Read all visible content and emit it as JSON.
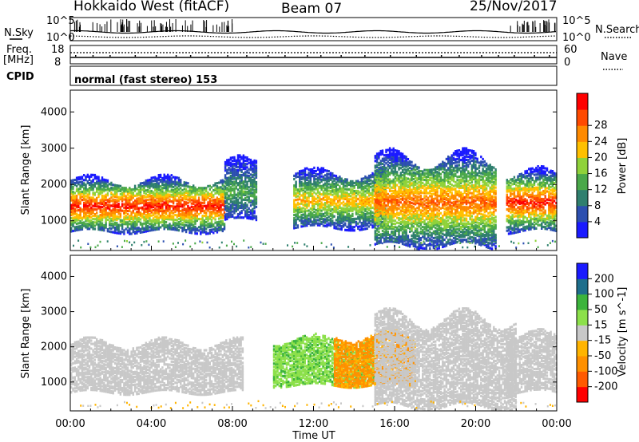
{
  "header": {
    "title": "Hokkaido West (fitACF)",
    "beam": "Beam 07",
    "date": "25/Nov/2017"
  },
  "status_panel": {
    "nsky_label": "N.Sky",
    "nsearch_label": "N.Search",
    "noise_top_left": "10^5",
    "noise_bot_left": "10^0",
    "noise_top_right": "10^5",
    "noise_bot_right": "10^0",
    "freq_label_line1": "Freq.",
    "freq_label_line2": "[MHz]",
    "freq_top": "18",
    "freq_bot": "8",
    "nave_top": "60",
    "nave_bot": "0",
    "nave_label": "Nave",
    "cpid_label": "CPID",
    "cpid_text": "normal (fast stereo) 153"
  },
  "colors": {
    "power_scale": [
      "#1a1aff",
      "#2c4fb0",
      "#2f7f6e",
      "#4aa84a",
      "#8fd23a",
      "#ffc000",
      "#ff8a00",
      "#ff4a00",
      "#ff0000"
    ],
    "velocity_scale": [
      "#ff0000",
      "#ff5a00",
      "#ff9000",
      "#ffb400",
      "#c8c8c8",
      "#8ce04a",
      "#3cb43c",
      "#1e6e8c",
      "#1a1aff"
    ],
    "ground_scatter": "#c8c8c8"
  },
  "chart_data": [
    {
      "type": "heatmap",
      "panel": "power",
      "xlabel": "",
      "ylabel": "Slant Range [km]",
      "ylim": [
        180,
        4600
      ],
      "yticks": [
        1000,
        2000,
        3000,
        4000
      ],
      "xlim": [
        0,
        24
      ],
      "colorbar": {
        "label": "Power [dB]",
        "ticks": [
          "4",
          "8",
          "12",
          "16",
          "20",
          "24",
          "28"
        ],
        "range": [
          0,
          30
        ]
      },
      "features": [
        {
          "t_start": 0.0,
          "t_end": 7.6,
          "range_low": 700,
          "range_high": 2100,
          "peak_db": 28
        },
        {
          "t_start": 7.6,
          "t_end": 9.2,
          "range_low": 1000,
          "range_high": 2600,
          "peak_db": 12
        },
        {
          "t_start": 11.0,
          "t_end": 15.5,
          "range_low": 800,
          "range_high": 2300,
          "peak_db": 20
        },
        {
          "t_start": 15.0,
          "t_end": 21.0,
          "range_low": 300,
          "range_high": 2700,
          "peak_db": 24
        },
        {
          "t_start": 21.5,
          "t_end": 24.0,
          "range_low": 700,
          "range_high": 2300,
          "peak_db": 28
        }
      ]
    },
    {
      "type": "heatmap",
      "panel": "velocity",
      "xlabel": "Time UT",
      "ylabel": "Slant Range [km]",
      "ylim": [
        180,
        4600
      ],
      "yticks": [
        1000,
        2000,
        3000,
        4000
      ],
      "xlim": [
        0,
        24
      ],
      "xticks": [
        "00:00",
        "04:00",
        "08:00",
        "12:00",
        "16:00",
        "20:00",
        "00:00"
      ],
      "colorbar": {
        "label": "Velocity [m s^-1]",
        "ticks": [
          "-200",
          "-100",
          "-50",
          "-15",
          "15",
          "50",
          "100",
          "200"
        ],
        "range": [
          -250,
          250
        ]
      },
      "features": [
        {
          "t_start": 0.0,
          "t_end": 8.5,
          "range_low": 700,
          "range_high": 2100,
          "velocity": 0,
          "kind": "ground scatter"
        },
        {
          "t_start": 10.0,
          "t_end": 15.0,
          "range_low": 900,
          "range_high": 2200,
          "velocity": 40
        },
        {
          "t_start": 13.0,
          "t_end": 17.0,
          "range_low": 900,
          "range_high": 2300,
          "velocity": -60
        },
        {
          "t_start": 15.0,
          "t_end": 22.0,
          "range_low": 300,
          "range_high": 2800,
          "velocity": 0,
          "kind": "ground scatter"
        },
        {
          "t_start": 21.5,
          "t_end": 24.0,
          "range_low": 700,
          "range_high": 2300,
          "velocity": 0,
          "kind": "ground scatter"
        }
      ]
    }
  ]
}
